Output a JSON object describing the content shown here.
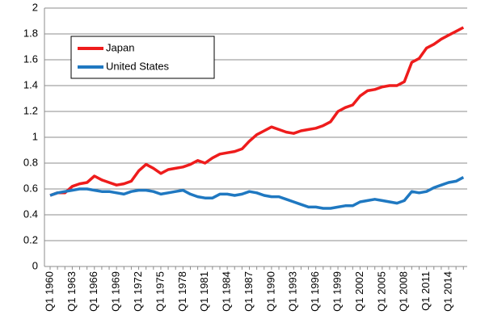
{
  "chart_data": {
    "type": "line",
    "categories": [
      "Q1 1960",
      null,
      null,
      "Q1 1963",
      null,
      null,
      "Q1 1966",
      null,
      null,
      "Q1 1969",
      null,
      null,
      "Q1 1972",
      null,
      null,
      "Q1 1975",
      null,
      null,
      "Q1 1978",
      null,
      null,
      "Q1 1981",
      null,
      null,
      "Q1 1984",
      null,
      null,
      "Q1 1987",
      null,
      null,
      "Q1 1990",
      null,
      null,
      "Q1 1993",
      null,
      null,
      "Q1 1996",
      null,
      null,
      "Q1 1999",
      null,
      null,
      "Q1 2002",
      null,
      null,
      "Q1 2005",
      null,
      null,
      "Q1 2008",
      null,
      null,
      "Q1 2011",
      null,
      null,
      "Q1 2014",
      null,
      null
    ],
    "series": [
      {
        "name": "Japan",
        "color": "#ee1c1c",
        "values": [
          0.55,
          0.57,
          0.57,
          0.62,
          0.64,
          0.65,
          0.7,
          0.67,
          0.65,
          0.63,
          0.64,
          0.66,
          0.74,
          0.79,
          0.76,
          0.72,
          0.75,
          0.76,
          0.77,
          0.79,
          0.82,
          0.8,
          0.84,
          0.87,
          0.88,
          0.89,
          0.91,
          0.97,
          1.02,
          1.05,
          1.08,
          1.06,
          1.04,
          1.03,
          1.05,
          1.06,
          1.07,
          1.09,
          1.12,
          1.2,
          1.23,
          1.25,
          1.32,
          1.36,
          1.37,
          1.39,
          1.4,
          1.4,
          1.43,
          1.58,
          1.61,
          1.69,
          1.72,
          1.76,
          1.79,
          1.82,
          1.85
        ]
      },
      {
        "name": "United States",
        "color": "#1f78c1",
        "values": [
          0.55,
          0.57,
          0.58,
          0.59,
          0.6,
          0.6,
          0.59,
          0.58,
          0.58,
          0.57,
          0.56,
          0.58,
          0.59,
          0.59,
          0.58,
          0.56,
          0.57,
          0.58,
          0.59,
          0.56,
          0.54,
          0.53,
          0.53,
          0.56,
          0.56,
          0.55,
          0.56,
          0.58,
          0.57,
          0.55,
          0.54,
          0.54,
          0.52,
          0.5,
          0.48,
          0.46,
          0.46,
          0.45,
          0.45,
          0.46,
          0.47,
          0.47,
          0.5,
          0.51,
          0.52,
          0.51,
          0.5,
          0.49,
          0.51,
          0.58,
          0.57,
          0.58,
          0.61,
          0.63,
          0.65,
          0.66,
          0.69
        ]
      }
    ],
    "ylim": [
      0,
      2
    ],
    "yticks": [
      0,
      0.2,
      0.4,
      0.6,
      0.8,
      1,
      1.2,
      1.4,
      1.6,
      1.8,
      2
    ],
    "grid": true,
    "legend": "upper-left"
  }
}
